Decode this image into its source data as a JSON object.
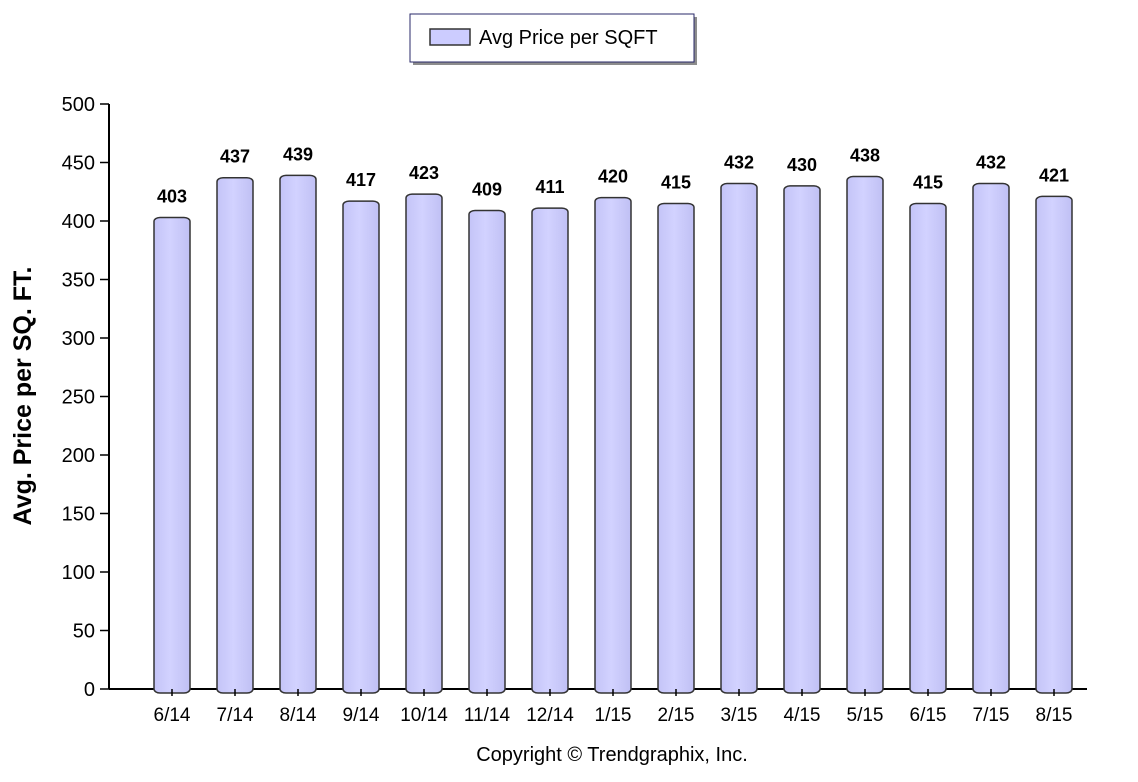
{
  "chart_data": {
    "type": "bar",
    "categories": [
      "6/14",
      "7/14",
      "8/14",
      "9/14",
      "10/14",
      "11/14",
      "12/14",
      "1/15",
      "2/15",
      "3/15",
      "4/15",
      "5/15",
      "6/15",
      "7/15",
      "8/15"
    ],
    "series": [
      {
        "name": "Avg Price per SQFT",
        "values": [
          403,
          437,
          439,
          417,
          423,
          409,
          411,
          420,
          415,
          432,
          430,
          438,
          415,
          432,
          421
        ]
      }
    ],
    "ylabel": "Avg. Price per SQ. FT.",
    "xlabel": "",
    "ylim": [
      0,
      500
    ],
    "yticks": [
      0,
      50,
      100,
      150,
      200,
      250,
      300,
      350,
      400,
      450,
      500
    ],
    "data_labels": true,
    "grid": false,
    "legend_position": "top-center",
    "bar_color": "#ccccff",
    "bar_border_color": "#333333",
    "footer": "Copyright © Trendgraphix, Inc."
  }
}
